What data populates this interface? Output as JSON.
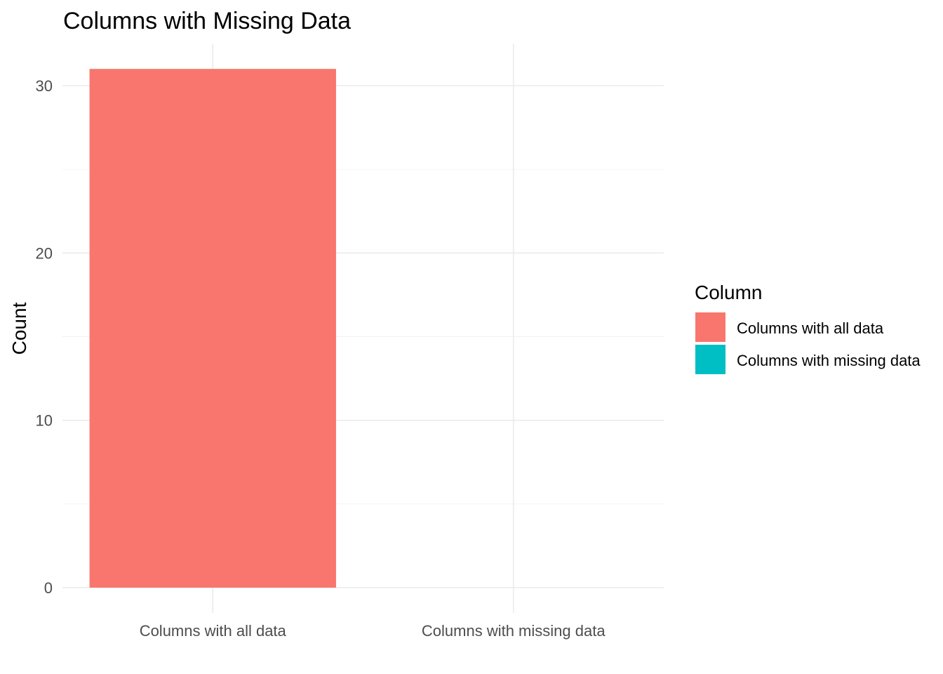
{
  "chart_data": {
    "type": "bar",
    "title": "Columns with Missing Data",
    "xlabel": "",
    "ylabel": "Count",
    "categories": [
      "Columns with all data",
      "Columns with missing data"
    ],
    "values": [
      31,
      0
    ],
    "colors": [
      "#F8766D",
      "#00BFC4"
    ],
    "ylim": [
      0,
      32.5
    ],
    "yticks": [
      0,
      10,
      20,
      30
    ],
    "yticks_minor": [
      5,
      15,
      25
    ],
    "grid": true,
    "legend": {
      "title": "Column",
      "position": "right",
      "entries": [
        "Columns with all data",
        "Columns with missing data"
      ]
    }
  }
}
